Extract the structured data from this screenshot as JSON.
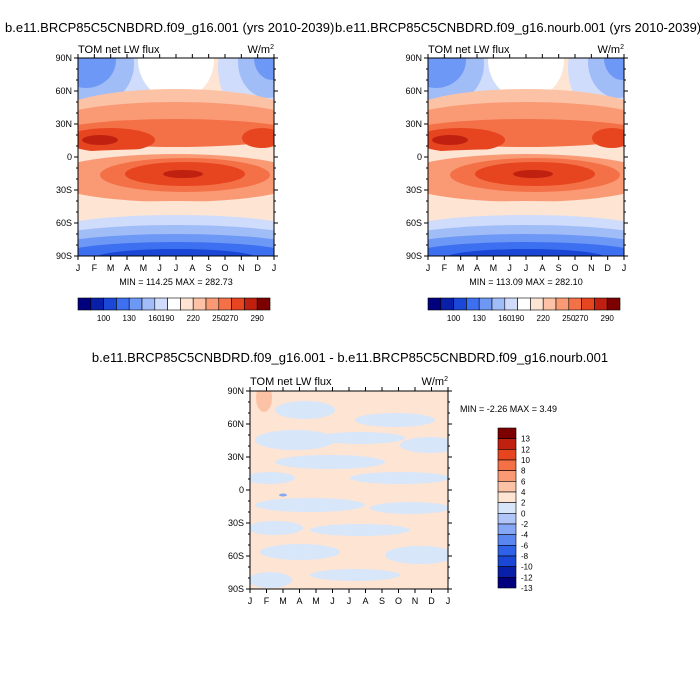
{
  "chart_data": [
    {
      "type": "heatmap",
      "title": "b.e11.BRCP85C5CNBDRD.f09_g16.001 (yrs 2010-2039)",
      "left_label": "TOM net LW flux",
      "units": "W/m",
      "units_sup": "2",
      "x_tick_labels": [
        "J",
        "F",
        "M",
        "A",
        "M",
        "J",
        "J",
        "A",
        "S",
        "O",
        "N",
        "D",
        "J"
      ],
      "y_tick_labels": [
        "90N",
        "60N",
        "30N",
        "0",
        "30S",
        "60S",
        "90S"
      ],
      "y_range": [
        -90,
        90
      ],
      "stats": "MIN = 114.25 MAX = 282.73",
      "colorbar_labels": [
        "100",
        "130",
        "160",
        "190",
        "220",
        "250",
        "270",
        "290"
      ],
      "field": "climatology"
    },
    {
      "type": "heatmap",
      "title": "b.e11.BRCP85C5CNBDRD.f09_g16.nourb.001 (yrs 2010-2039)",
      "left_label": "TOM net LW flux",
      "units": "W/m",
      "units_sup": "2",
      "x_tick_labels": [
        "J",
        "F",
        "M",
        "A",
        "M",
        "J",
        "J",
        "A",
        "S",
        "O",
        "N",
        "D",
        "J"
      ],
      "y_tick_labels": [
        "90N",
        "60N",
        "30N",
        "0",
        "30S",
        "60S",
        "90S"
      ],
      "y_range": [
        -90,
        90
      ],
      "stats": "MIN = 113.09 MAX = 282.10",
      "colorbar_labels": [
        "100",
        "130",
        "160",
        "190",
        "220",
        "250",
        "270",
        "290"
      ],
      "field": "climatology"
    },
    {
      "type": "heatmap",
      "title": "b.e11.BRCP85C5CNBDRD.f09_g16.001 - b.e11.BRCP85C5CNBDRD.f09_g16.nourb.001",
      "left_label": "TOM net LW flux",
      "units": "W/m",
      "units_sup": "2",
      "x_tick_labels": [
        "J",
        "F",
        "M",
        "A",
        "M",
        "J",
        "J",
        "A",
        "S",
        "O",
        "N",
        "D",
        "J"
      ],
      "y_tick_labels": [
        "90N",
        "60N",
        "30N",
        "0",
        "30S",
        "60S",
        "90S"
      ],
      "y_range": [
        -90,
        90
      ],
      "stats": "MIN =  -2.26 MAX =   3.49",
      "colorbar_labels": [
        "13",
        "12",
        "10",
        "8",
        "6",
        "4",
        "2",
        "0",
        "-2",
        "-4",
        "-6",
        "-8",
        "-10",
        "-12",
        "-13"
      ],
      "field": "difference"
    }
  ],
  "colors": {
    "climatology": [
      "#00007f",
      "#0a1fa8",
      "#1a47d6",
      "#3c70f0",
      "#6e98f5",
      "#a1bdf8",
      "#cfdcfb",
      "#ffffff",
      "#fde4d3",
      "#fcc2a5",
      "#f99a75",
      "#f47148",
      "#e64520",
      "#c0200f",
      "#7d0000"
    ],
    "difference": [
      "#00007f",
      "#0a1fa8",
      "#1a47d6",
      "#2e62e8",
      "#5a86f2",
      "#86a7f5",
      "#b0c6f8",
      "#d8e6fa",
      "#fde4d3",
      "#fcc2a5",
      "#f99a75",
      "#f47148",
      "#e64520",
      "#c0200f",
      "#7d0000"
    ]
  }
}
